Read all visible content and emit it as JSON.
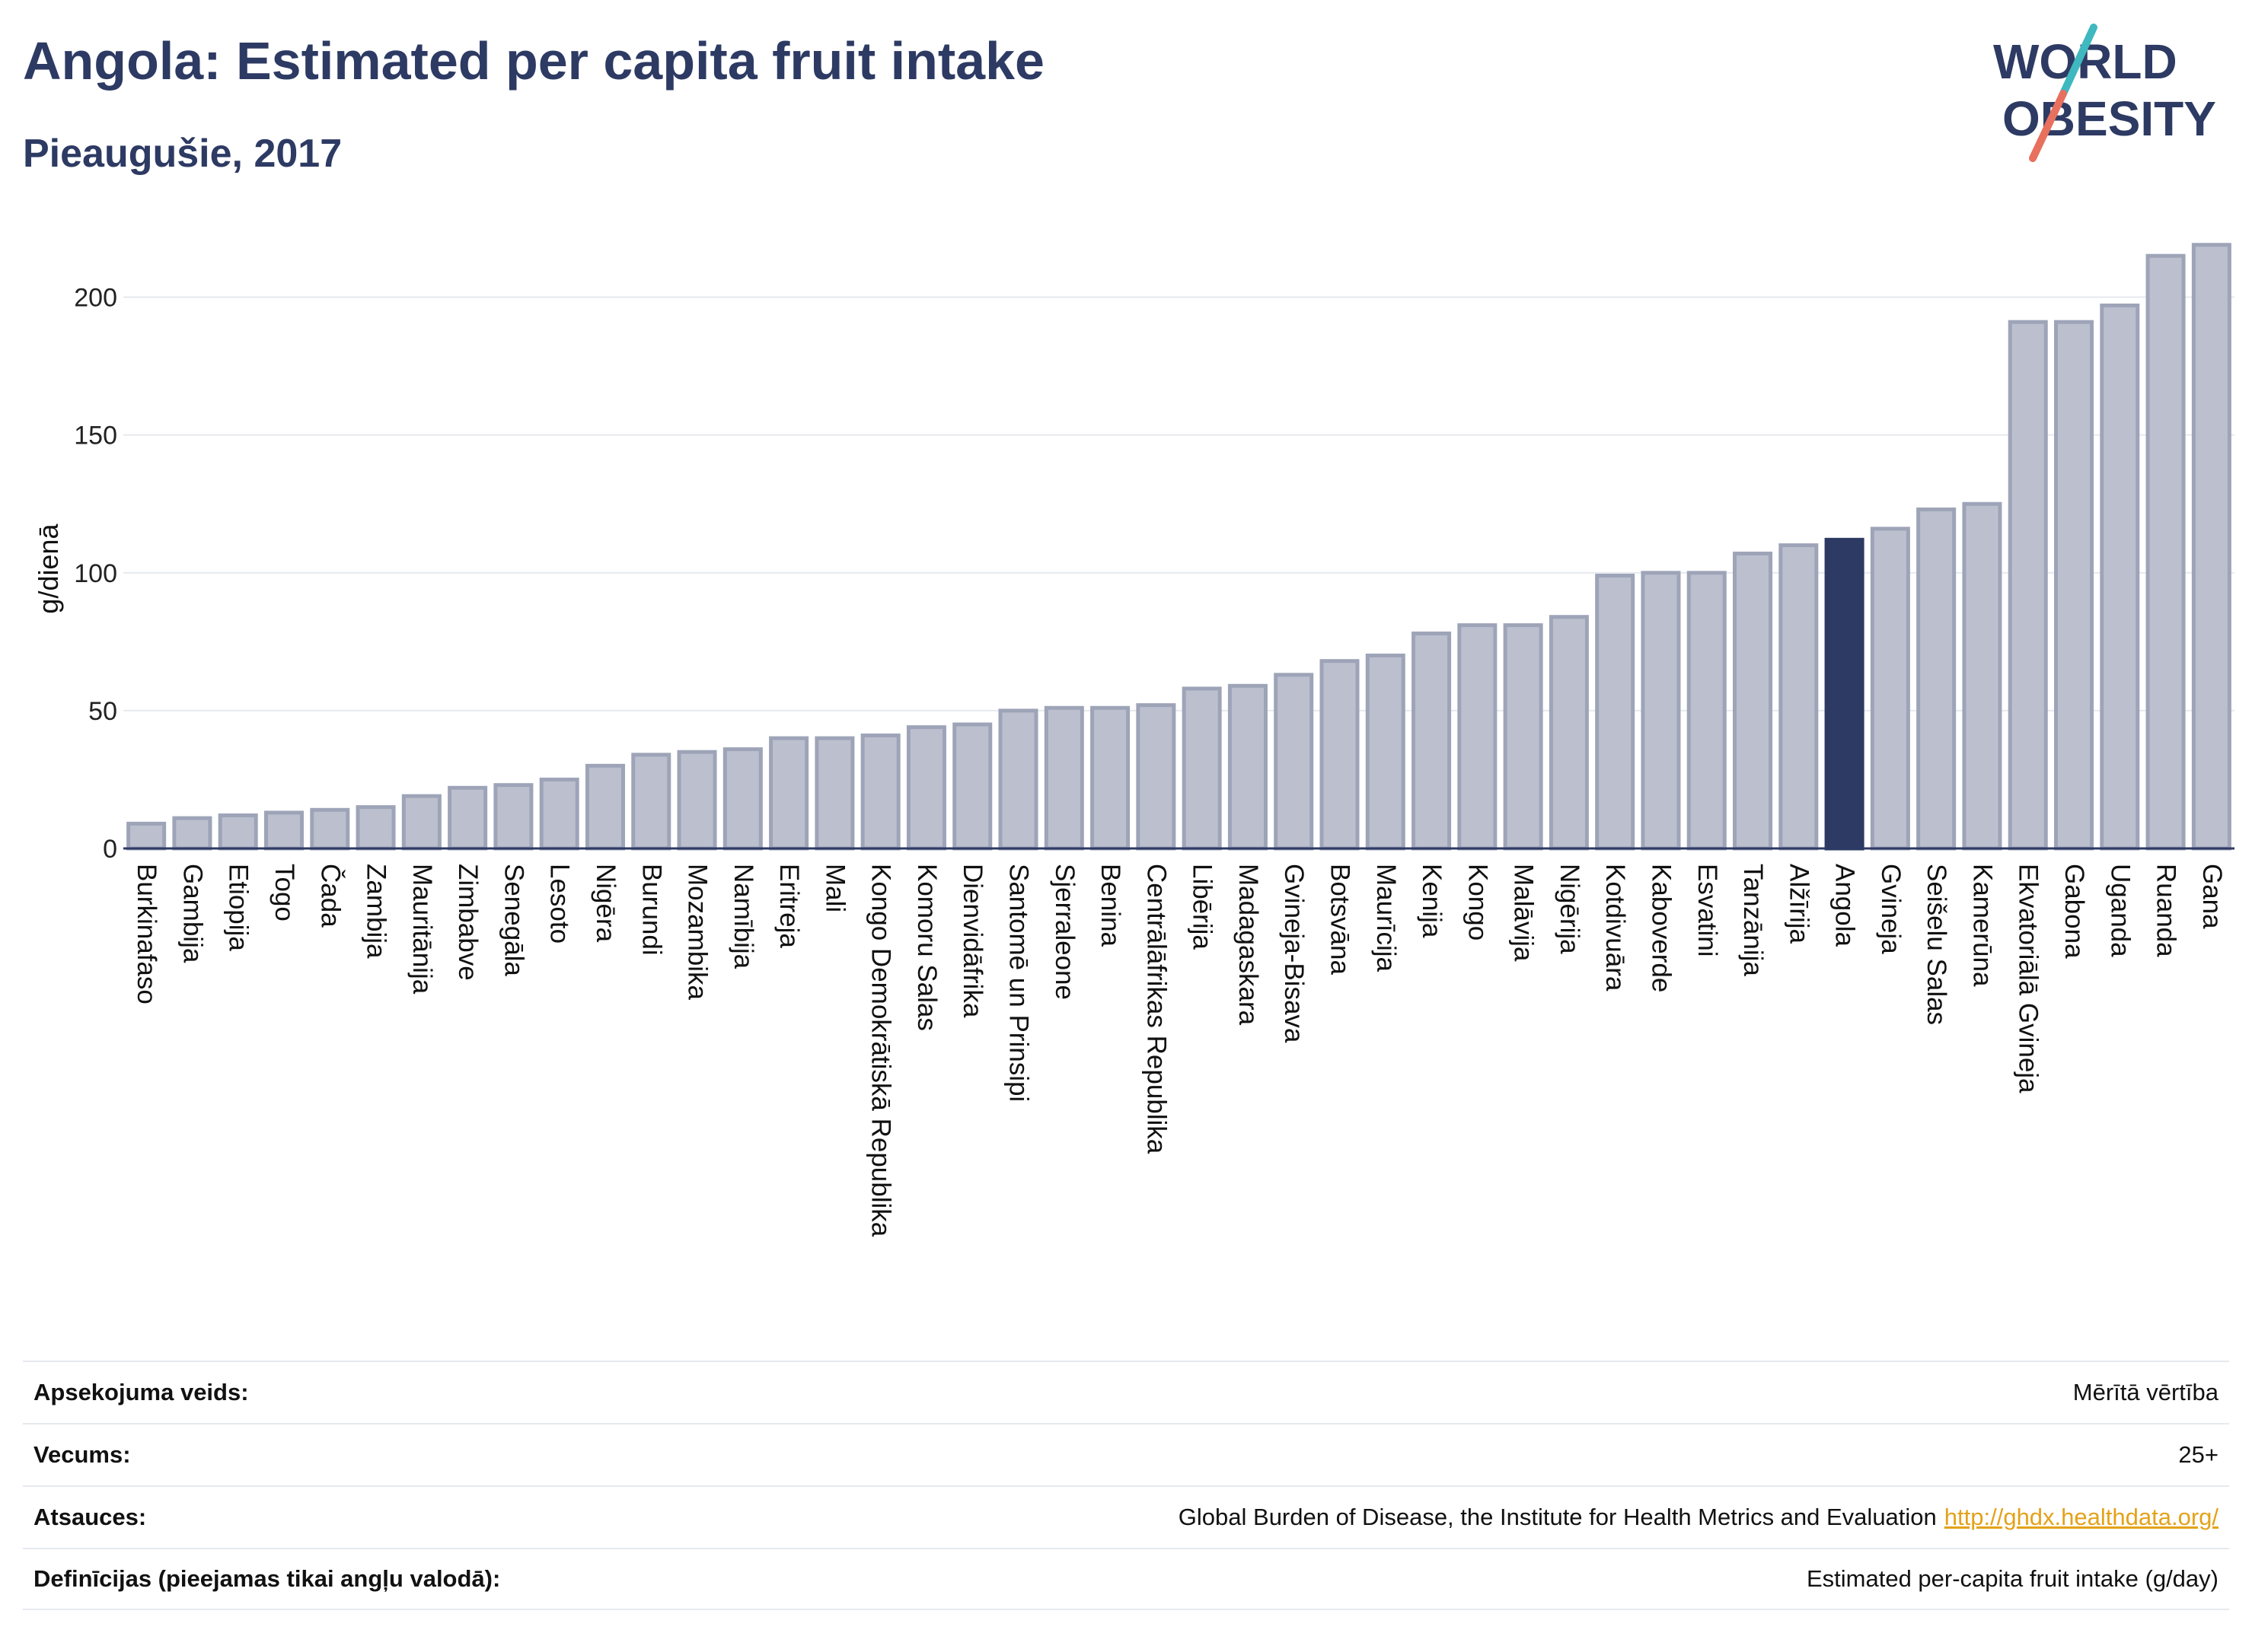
{
  "title": "Angola: Estimated per capita fruit intake",
  "subtitle": "Pieaugušie, 2017",
  "logo": {
    "line1": "WORLD",
    "line2": "OBESITY",
    "colors": {
      "text": "#2d3a63",
      "slash_teal": "#3fb8bf",
      "slash_coral": "#e8705e"
    }
  },
  "colors": {
    "bar": "#bcc0ce",
    "bar_stroke": "#9ea4b8",
    "highlight": "#2d3a63",
    "grid": "#e6e9ee",
    "title": "#2d3a63"
  },
  "chart_data": {
    "type": "bar",
    "title": "Angola: Estimated per capita fruit intake",
    "subtitle": "Pieaugušie, 2017",
    "xlabel": "",
    "ylabel": "g/dienā",
    "ylim": [
      0,
      225
    ],
    "yticks": [
      0,
      50,
      100,
      150,
      200
    ],
    "grid": true,
    "highlight": "Angola",
    "categories": [
      "Burkinafaso",
      "Gambija",
      "Etiopija",
      "Togo",
      "Čada",
      "Zambija",
      "Mauritānija",
      "Zimbabve",
      "Senegāla",
      "Lesoto",
      "Nigēra",
      "Burundi",
      "Mozambika",
      "Namībija",
      "Eritreja",
      "Mali",
      "Kongo Demokrātiskā Republika",
      "Komoru Salas",
      "Dienvidāfrika",
      "Santomē un Prinsipi",
      "Sjerraleone",
      "Benina",
      "Centrālāfrikas Republika",
      "Libērija",
      "Madagaskara",
      "Gvineja-Bisava",
      "Botsvāna",
      "Maurīcija",
      "Kenija",
      "Kongo",
      "Malāvija",
      "Nigērija",
      "Kotdivuāra",
      "Kaboverde",
      "Esvatini",
      "Tanzānija",
      "Alžīrija",
      "Angola",
      "Gvineja",
      "Seišelu Salas",
      "Kamerūna",
      "Ekvatoriālā Gvineja",
      "Gabona",
      "Uganda",
      "Ruanda",
      "Gana"
    ],
    "values": [
      9,
      11,
      12,
      13,
      14,
      15,
      19,
      22,
      23,
      25,
      30,
      34,
      35,
      36,
      40,
      40,
      41,
      44,
      45,
      50,
      51,
      51,
      52,
      58,
      59,
      63,
      68,
      70,
      78,
      81,
      81,
      84,
      99,
      100,
      100,
      107,
      110,
      112,
      116,
      123,
      125,
      191,
      191,
      197,
      215,
      219
    ]
  },
  "meta": {
    "rows": [
      {
        "label": "Apsekojuma veids:",
        "value": "Mērītā vērtība"
      },
      {
        "label": "Vecums:",
        "value": "25+"
      },
      {
        "label": "Atsauces:",
        "value": "Global Burden of Disease, the Institute for Health Metrics and Evaluation",
        "link": "http://ghdx.healthdata.org/"
      },
      {
        "label": "Definīcijas (pieejamas tikai angļu valodā):",
        "value": "Estimated per-capita fruit intake (g/day)"
      }
    ]
  }
}
